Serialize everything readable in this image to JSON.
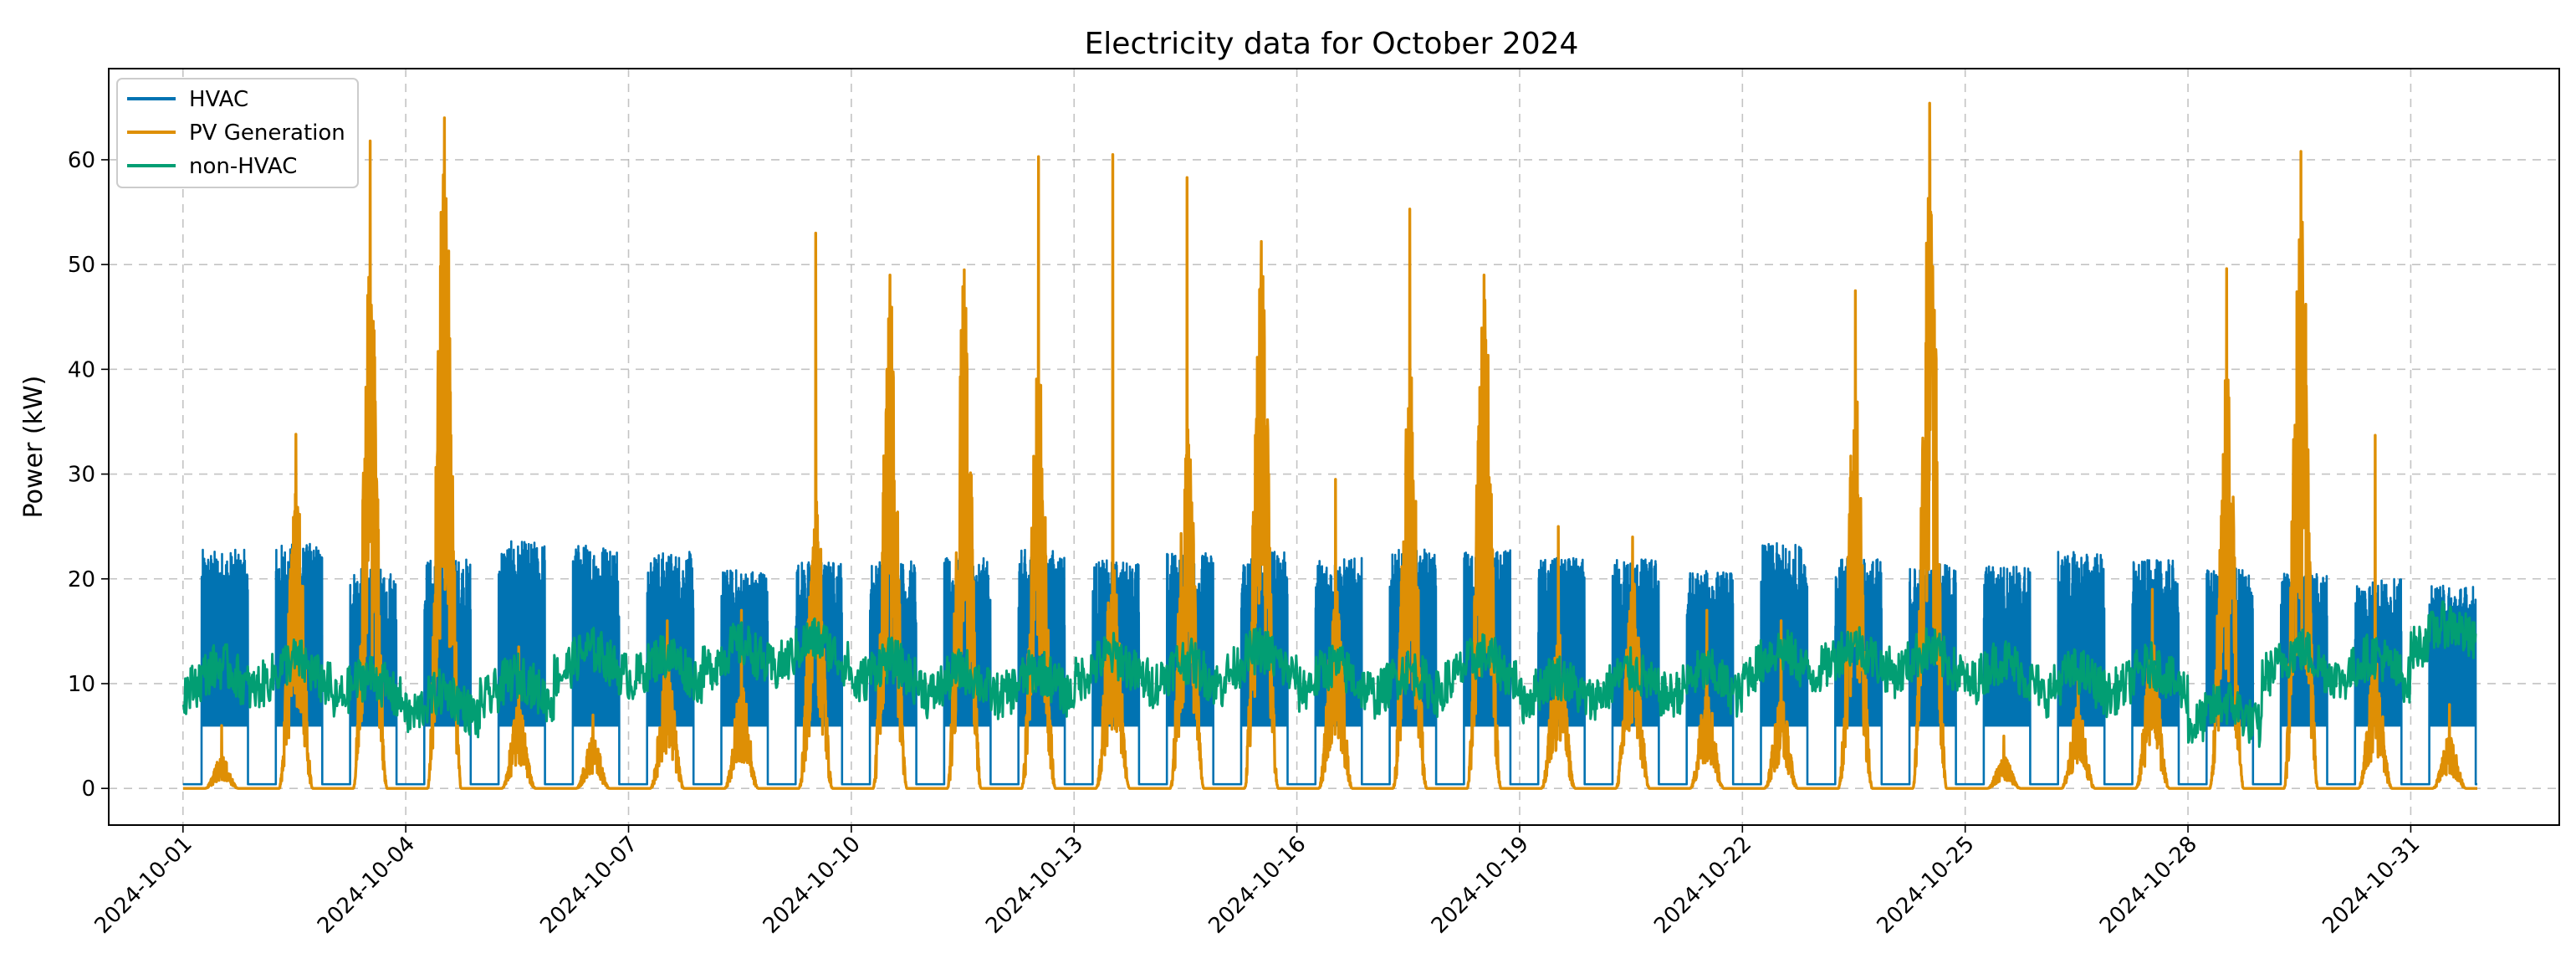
{
  "chart_data": {
    "type": "line",
    "title": "Electricity data for October 2024",
    "xlabel": "",
    "ylabel": "Power (kW)",
    "x_range": [
      "2024-09-30",
      "2024-11-02"
    ],
    "ylim": [
      -3.5,
      68.7
    ],
    "y_ticks": [
      0,
      10,
      20,
      30,
      40,
      50,
      60
    ],
    "x_ticks": [
      "2024-10-01",
      "2024-10-04",
      "2024-10-07",
      "2024-10-10",
      "2024-10-13",
      "2024-10-16",
      "2024-10-19",
      "2024-10-22",
      "2024-10-25",
      "2024-10-28",
      "2024-10-31"
    ],
    "grid": true,
    "legend_position": "top-left",
    "dates": [
      "2024-10-01",
      "2024-10-02",
      "2024-10-03",
      "2024-10-04",
      "2024-10-05",
      "2024-10-06",
      "2024-10-07",
      "2024-10-08",
      "2024-10-09",
      "2024-10-10",
      "2024-10-11",
      "2024-10-12",
      "2024-10-13",
      "2024-10-14",
      "2024-10-15",
      "2024-10-16",
      "2024-10-17",
      "2024-10-18",
      "2024-10-19",
      "2024-10-20",
      "2024-10-21",
      "2024-10-22",
      "2024-10-23",
      "2024-10-24",
      "2024-10-25",
      "2024-10-26",
      "2024-10-27",
      "2024-10-28",
      "2024-10-29",
      "2024-10-30",
      "2024-10-31"
    ],
    "series": [
      {
        "name": "HVAC",
        "color": "#0173b2",
        "off_value": 0.4,
        "daily_on_hours": [
          6,
          21
        ],
        "daily_min": [
          6,
          6,
          6,
          6,
          6,
          6,
          6,
          6,
          6,
          6,
          6,
          6,
          6,
          6,
          6,
          6,
          6,
          6,
          6,
          6,
          6,
          6,
          6,
          6,
          6,
          6,
          6,
          6,
          6,
          6,
          6
        ],
        "daily_max": [
          22.8,
          23.4,
          21.0,
          22.0,
          23.6,
          23.4,
          22.6,
          21.0,
          21.8,
          21.8,
          22.0,
          22.8,
          21.8,
          22.6,
          22.6,
          22.0,
          22.8,
          22.8,
          22.0,
          22.0,
          20.8,
          23.4,
          22.0,
          21.4,
          21.4,
          22.6,
          21.8,
          21.0,
          20.6,
          20.0,
          19.4
        ]
      },
      {
        "name": "PV Generation",
        "color": "#de8f05",
        "daily_peak": [
          6.0,
          33.8,
          61.8,
          64.0,
          13.5,
          7.0,
          16.0,
          17.0,
          53.0,
          49.0,
          49.5,
          60.3,
          60.5,
          58.3,
          52.2,
          29.5,
          55.3,
          49.0,
          25.0,
          24.0,
          17.0,
          16.0,
          47.5,
          65.4,
          5.0,
          11.0,
          19.0,
          49.6,
          60.8,
          33.7,
          8.0
        ],
        "daily_secondary": [
          3.0,
          30.0,
          52.0,
          62.0,
          8.0,
          5.0,
          12.0,
          10.0,
          29.0,
          47.0,
          48.0,
          41.0,
          21.5,
          36.6,
          51.0,
          19.0,
          39.7,
          48.0,
          15.0,
          20.0,
          10.0,
          9.0,
          38.8,
          61.0,
          3.0,
          8.0,
          14.0,
          41.0,
          57.3,
          12.0,
          5.0
        ]
      },
      {
        "name": "non-HVAC",
        "color": "#029e73",
        "daily_level": [
          10.5,
          11.0,
          9.5,
          8.0,
          9.5,
          12.0,
          11.5,
          12.5,
          13.0,
          11.0,
          10.0,
          10.0,
          11.5,
          11.0,
          12.0,
          10.5,
          10.0,
          11.5,
          9.5,
          10.0,
          10.0,
          12.0,
          12.5,
          12.0,
          11.0,
          10.0,
          10.5,
          7.0,
          12.0,
          11.5,
          14.5
        ]
      }
    ]
  }
}
